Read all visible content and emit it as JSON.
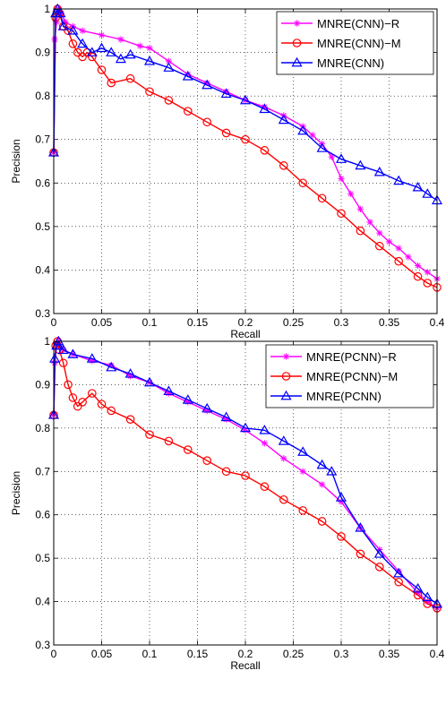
{
  "chart_data": [
    {
      "type": "line",
      "xlabel": "Recall",
      "ylabel": "Precision",
      "xlim": [
        0,
        0.4
      ],
      "ylim": [
        0.3,
        1
      ],
      "xticks": [
        "0",
        "0.05",
        "0.1",
        "0.15",
        "0.2",
        "0.25",
        "0.3",
        "0.35",
        "0.4"
      ],
      "yticks": [
        "0.3",
        "0.4",
        "0.5",
        "0.6",
        "0.7",
        "0.8",
        "0.9",
        "1"
      ],
      "grid": true,
      "legend_position": "top-right",
      "series": [
        {
          "name": "MNRE(CNN)−R",
          "color": "#ff00ff",
          "marker": "star",
          "x": [
            0,
            0.001,
            0.003,
            0.005,
            0.008,
            0.012,
            0.02,
            0.03,
            0.05,
            0.07,
            0.09,
            0.1,
            0.12,
            0.14,
            0.16,
            0.18,
            0.2,
            0.22,
            0.24,
            0.26,
            0.27,
            0.28,
            0.29,
            0.3,
            0.31,
            0.32,
            0.33,
            0.34,
            0.35,
            0.36,
            0.37,
            0.38,
            0.39,
            0.4
          ],
          "y": [
            0.67,
            0.93,
            0.97,
            1.0,
            0.99,
            0.97,
            0.96,
            0.95,
            0.94,
            0.93,
            0.915,
            0.91,
            0.88,
            0.85,
            0.83,
            0.81,
            0.79,
            0.775,
            0.755,
            0.73,
            0.71,
            0.69,
            0.66,
            0.61,
            0.575,
            0.54,
            0.51,
            0.485,
            0.465,
            0.45,
            0.43,
            0.41,
            0.395,
            0.38
          ]
        },
        {
          "name": "MNRE(CNN)−M",
          "color": "#ff0000",
          "marker": "circle",
          "x": [
            0,
            0.002,
            0.004,
            0.006,
            0.01,
            0.015,
            0.02,
            0.025,
            0.03,
            0.035,
            0.04,
            0.05,
            0.06,
            0.08,
            0.1,
            0.12,
            0.14,
            0.16,
            0.18,
            0.2,
            0.22,
            0.24,
            0.26,
            0.28,
            0.3,
            0.32,
            0.34,
            0.36,
            0.38,
            0.39,
            0.4
          ],
          "y": [
            0.67,
            0.98,
            1.0,
            0.99,
            0.96,
            0.95,
            0.92,
            0.9,
            0.89,
            0.9,
            0.89,
            0.86,
            0.83,
            0.84,
            0.81,
            0.79,
            0.765,
            0.74,
            0.715,
            0.7,
            0.675,
            0.64,
            0.6,
            0.565,
            0.53,
            0.49,
            0.455,
            0.42,
            0.385,
            0.37,
            0.36
          ]
        },
        {
          "name": "MNRE(CNN)",
          "color": "#0000ff",
          "marker": "triangle",
          "x": [
            0,
            0.002,
            0.004,
            0.007,
            0.01,
            0.02,
            0.03,
            0.04,
            0.05,
            0.06,
            0.07,
            0.08,
            0.1,
            0.12,
            0.14,
            0.16,
            0.18,
            0.2,
            0.22,
            0.24,
            0.26,
            0.28,
            0.3,
            0.32,
            0.34,
            0.36,
            0.38,
            0.39,
            0.4
          ],
          "y": [
            0.67,
            0.99,
            1.0,
            0.99,
            0.96,
            0.95,
            0.92,
            0.9,
            0.91,
            0.9,
            0.885,
            0.895,
            0.88,
            0.865,
            0.845,
            0.825,
            0.805,
            0.79,
            0.77,
            0.745,
            0.72,
            0.68,
            0.655,
            0.64,
            0.625,
            0.605,
            0.59,
            0.575,
            0.56
          ]
        }
      ]
    },
    {
      "type": "line",
      "xlabel": "Recall",
      "ylabel": "Precision",
      "xlim": [
        0,
        0.4
      ],
      "ylim": [
        0.3,
        1
      ],
      "xticks": [
        "0",
        "0.05",
        "0.1",
        "0.15",
        "0.2",
        "0.25",
        "0.3",
        "0.35",
        "0.4"
      ],
      "yticks": [
        "0.3",
        "0.4",
        "0.5",
        "0.6",
        "0.7",
        "0.8",
        "0.9",
        "1"
      ],
      "grid": true,
      "legend_position": "top-right",
      "series": [
        {
          "name": "MNRE(PCNN)−R",
          "color": "#ff00ff",
          "marker": "star",
          "x": [
            0,
            0.001,
            0.003,
            0.005,
            0.01,
            0.02,
            0.04,
            0.06,
            0.08,
            0.1,
            0.12,
            0.14,
            0.16,
            0.18,
            0.2,
            0.22,
            0.24,
            0.26,
            0.28,
            0.3,
            0.32,
            0.34,
            0.36,
            0.38,
            0.39,
            0.4
          ],
          "y": [
            0.83,
            0.95,
            0.99,
            1.0,
            0.98,
            0.97,
            0.955,
            0.945,
            0.92,
            0.905,
            0.88,
            0.86,
            0.84,
            0.82,
            0.795,
            0.765,
            0.73,
            0.7,
            0.67,
            0.63,
            0.57,
            0.52,
            0.47,
            0.42,
            0.4,
            0.385
          ]
        },
        {
          "name": "MNRE(PCNN)−M",
          "color": "#ff0000",
          "marker": "circle",
          "x": [
            0,
            0.002,
            0.004,
            0.006,
            0.01,
            0.015,
            0.02,
            0.025,
            0.03,
            0.04,
            0.05,
            0.06,
            0.08,
            0.1,
            0.12,
            0.14,
            0.16,
            0.18,
            0.2,
            0.22,
            0.24,
            0.26,
            0.28,
            0.3,
            0.32,
            0.34,
            0.36,
            0.38,
            0.39,
            0.4
          ],
          "y": [
            0.83,
            0.99,
            1.0,
            0.98,
            0.95,
            0.9,
            0.87,
            0.85,
            0.86,
            0.88,
            0.855,
            0.84,
            0.82,
            0.785,
            0.77,
            0.75,
            0.725,
            0.7,
            0.69,
            0.665,
            0.635,
            0.61,
            0.585,
            0.55,
            0.51,
            0.48,
            0.445,
            0.415,
            0.395,
            0.385
          ]
        },
        {
          "name": "MNRE(PCNN)",
          "color": "#0000ff",
          "marker": "triangle",
          "x": [
            0,
            0.001,
            0.003,
            0.005,
            0.01,
            0.02,
            0.04,
            0.06,
            0.08,
            0.1,
            0.12,
            0.14,
            0.16,
            0.18,
            0.2,
            0.22,
            0.24,
            0.26,
            0.28,
            0.29,
            0.3,
            0.32,
            0.34,
            0.36,
            0.38,
            0.39,
            0.4
          ],
          "y": [
            0.83,
            0.96,
            0.99,
            1.0,
            0.98,
            0.97,
            0.96,
            0.94,
            0.925,
            0.905,
            0.885,
            0.865,
            0.845,
            0.825,
            0.8,
            0.795,
            0.77,
            0.745,
            0.715,
            0.7,
            0.64,
            0.57,
            0.51,
            0.465,
            0.43,
            0.41,
            0.395
          ]
        }
      ]
    }
  ]
}
